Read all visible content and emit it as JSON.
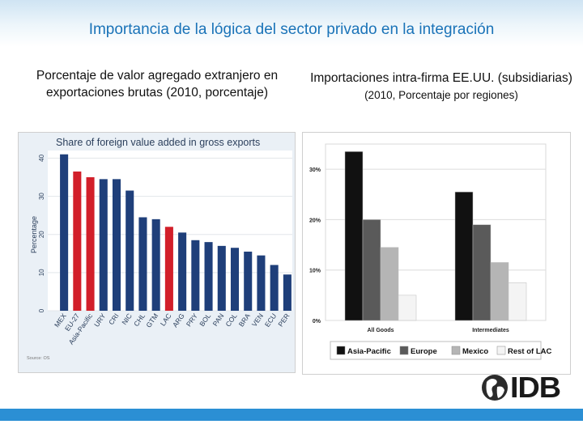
{
  "slide": {
    "title": "Importancia de la lógica del sector privado en la integración",
    "left_subtitle": "Porcentaje de valor agregado extranjero en exportaciones brutas (2010, porcentaje)",
    "right_subtitle_line1": "Importaciones intra-firma EE.UU. (subsidiarias)",
    "right_subtitle_line2": "(2010, Porcentaje por regiones)",
    "logo_text": "IDB"
  },
  "colors": {
    "title": "#1a73b8",
    "bar_navy": "#1f3f7a",
    "bar_red": "#d21f2a",
    "bottom_bar": "#2b8fd4"
  },
  "chart_data": [
    {
      "type": "bar",
      "title": "Share of foreign value added in gross exports",
      "ylabel": "Percentage",
      "ylim": [
        0,
        42
      ],
      "yticks": [
        0,
        10,
        20,
        30,
        40
      ],
      "source": "Source: OS",
      "categories": [
        "MEX",
        "EU-27",
        "Asia-Pacific",
        "URY",
        "CRI",
        "NIC",
        "CHL",
        "GTM",
        "LAC",
        "ARG",
        "PRY",
        "BOL",
        "PAN",
        "COL",
        "BRA",
        "VEN",
        "ECU",
        "PER"
      ],
      "values": [
        41,
        36.5,
        35,
        34.5,
        34.5,
        31.5,
        24.5,
        24,
        22,
        20.5,
        18.5,
        18,
        17,
        16.5,
        15.5,
        14.5,
        12,
        9.5
      ],
      "highlight": [
        false,
        true,
        true,
        false,
        false,
        false,
        false,
        false,
        true,
        false,
        false,
        false,
        false,
        false,
        false,
        false,
        false,
        false
      ]
    },
    {
      "type": "bar",
      "categories": [
        "All Goods",
        "Intermediates"
      ],
      "ylim": [
        0,
        35
      ],
      "yticks": [
        "0%",
        "10%",
        "20%",
        "30%"
      ],
      "ytick_values": [
        0,
        10,
        20,
        30
      ],
      "series": [
        {
          "name": "Asia-Pacific",
          "values": [
            33.5,
            25.5
          ],
          "color": "#111111"
        },
        {
          "name": "Europe",
          "values": [
            20,
            19
          ],
          "color": "#5a5a5a"
        },
        {
          "name": "Mexico",
          "values": [
            14.5,
            11.5
          ],
          "color": "#b5b5b5"
        },
        {
          "name": "Rest of LAC",
          "values": [
            5,
            7.5
          ],
          "color": "#f4f4f4"
        }
      ],
      "legend": "bottom"
    }
  ]
}
